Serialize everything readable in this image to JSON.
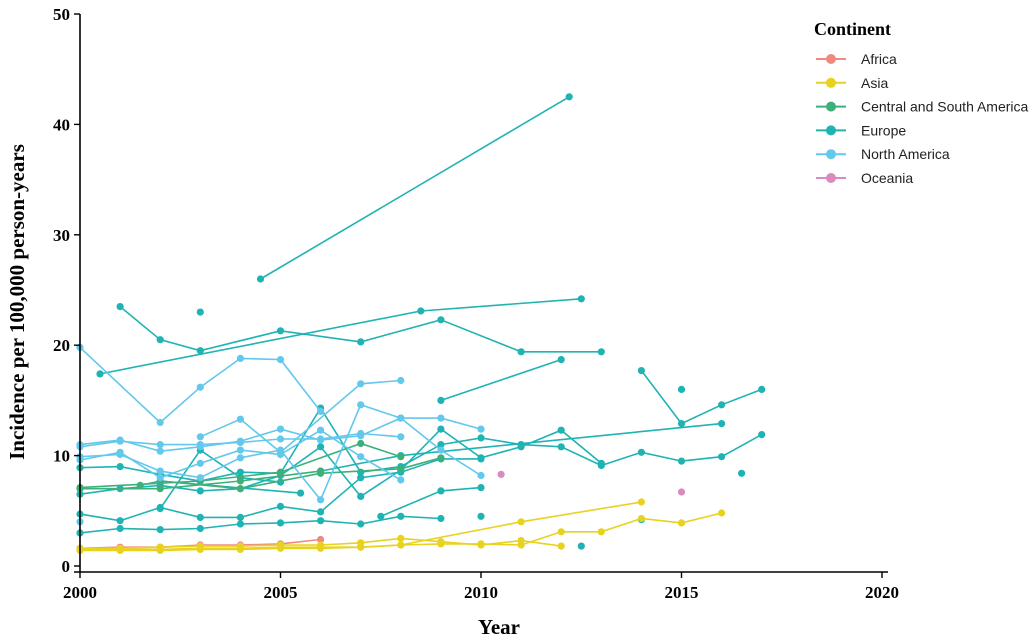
{
  "chart_data": {
    "type": "line",
    "xlabel": "Year",
    "ylabel": "Incidence per 100,000 person-years",
    "xlim": [
      2000,
      2020
    ],
    "ylim": [
      0,
      50
    ],
    "xticks": [
      "2000",
      "2005",
      "2010",
      "2015",
      "2020"
    ],
    "yticks": [
      "0",
      "10",
      "20",
      "30",
      "40",
      "50"
    ],
    "grid": false,
    "legend": {
      "title": "Continent",
      "placement": "top-right",
      "entries": [
        {
          "name": "Africa",
          "color": "#F08A7E"
        },
        {
          "name": "Asia",
          "color": "#E8D21E"
        },
        {
          "name": "Central and South America",
          "color": "#3DB07A"
        },
        {
          "name": "Europe",
          "color": "#1FB3B3"
        },
        {
          "name": "North America",
          "color": "#62C8EC"
        },
        {
          "name": "Oceania",
          "color": "#D98BC0"
        }
      ]
    },
    "series": [
      {
        "continent": "Europe",
        "points": [
          [
            2004.5,
            26.0
          ],
          [
            2012.2,
            42.5
          ]
        ]
      },
      {
        "continent": "Europe",
        "points": [
          [
            2003,
            23.0
          ]
        ]
      },
      {
        "continent": "Europe",
        "points": [
          [
            2001,
            23.5
          ],
          [
            2002,
            20.5
          ],
          [
            2003,
            19.5
          ],
          [
            2005,
            21.3
          ],
          [
            2007,
            20.3
          ],
          [
            2009,
            22.3
          ],
          [
            2011,
            19.4
          ],
          [
            2013,
            19.4
          ]
        ]
      },
      {
        "continent": "Europe",
        "points": [
          [
            2000.5,
            17.4
          ],
          [
            2008.5,
            23.1
          ],
          [
            2012.5,
            24.2
          ]
        ]
      },
      {
        "continent": "Europe",
        "points": [
          [
            2009,
            15.0
          ],
          [
            2012,
            18.7
          ]
        ]
      },
      {
        "continent": "Europe",
        "points": [
          [
            2014,
            17.7
          ],
          [
            2015,
            12.9
          ],
          [
            2016,
            14.6
          ],
          [
            2017,
            16.0
          ]
        ]
      },
      {
        "continent": "Europe",
        "points": [
          [
            2015,
            16.0
          ]
        ]
      },
      {
        "continent": "Europe",
        "points": [
          [
            2000,
            8.9
          ],
          [
            2001,
            9.0
          ],
          [
            2002,
            8.3
          ],
          [
            2003,
            7.7
          ],
          [
            2004,
            8.5
          ],
          [
            2005,
            8.4
          ],
          [
            2006,
            14.3
          ],
          [
            2007,
            8.5
          ],
          [
            2008,
            9.0
          ],
          [
            2009,
            11.0
          ],
          [
            2010,
            11.6
          ],
          [
            2011,
            11.0
          ],
          [
            2012,
            10.8
          ],
          [
            2013,
            9.1
          ],
          [
            2014,
            10.3
          ],
          [
            2015,
            9.5
          ],
          [
            2016,
            9.9
          ],
          [
            2017,
            11.9
          ]
        ]
      },
      {
        "continent": "Europe",
        "points": [
          [
            2000,
            6.5
          ],
          [
            2001,
            7.0
          ],
          [
            2002,
            7.3
          ],
          [
            2003,
            6.8
          ],
          [
            2004,
            7.0
          ],
          [
            2005,
            8.2
          ],
          [
            2006,
            10.8
          ],
          [
            2007,
            6.3
          ],
          [
            2008,
            8.7
          ],
          [
            2009,
            12.4
          ],
          [
            2010,
            9.8
          ],
          [
            2011,
            10.8
          ],
          [
            2012,
            12.3
          ],
          [
            2013,
            9.3
          ]
        ]
      },
      {
        "continent": "Europe",
        "points": [
          [
            2000,
            4.7
          ],
          [
            2001,
            4.1
          ],
          [
            2002,
            5.3
          ],
          [
            2003,
            4.4
          ],
          [
            2004,
            4.4
          ],
          [
            2005,
            5.4
          ],
          [
            2006,
            4.9
          ],
          [
            2007,
            8.0
          ],
          [
            2008,
            8.5
          ],
          [
            2009,
            9.7
          ],
          [
            2010,
            9.7
          ]
        ]
      },
      {
        "continent": "Europe",
        "points": [
          [
            2000,
            3.0
          ],
          [
            2001,
            3.4
          ],
          [
            2002,
            3.3
          ],
          [
            2003,
            3.4
          ],
          [
            2004,
            3.8
          ],
          [
            2005,
            3.9
          ],
          [
            2006,
            4.1
          ],
          [
            2007,
            3.8
          ],
          [
            2008,
            4.5
          ],
          [
            2009,
            4.3
          ]
        ]
      },
      {
        "continent": "Europe",
        "points": [
          [
            2007.5,
            4.5
          ],
          [
            2009,
            6.8
          ],
          [
            2010,
            7.1
          ]
        ]
      },
      {
        "continent": "Europe",
        "points": [
          [
            2002,
            5.2
          ],
          [
            2003,
            10.5
          ],
          [
            2004,
            8.0
          ],
          [
            2005,
            7.6
          ]
        ]
      },
      {
        "continent": "Europe",
        "points": [
          [
            2002,
            7.7
          ],
          [
            2005.5,
            6.6
          ]
        ]
      },
      {
        "continent": "Europe",
        "points": [
          [
            2006,
            8.6
          ],
          [
            2008,
            10.0
          ],
          [
            2016,
            12.9
          ]
        ]
      },
      {
        "continent": "Europe",
        "points": [
          [
            2016.5,
            8.4
          ]
        ]
      },
      {
        "continent": "Europe",
        "points": [
          [
            2010,
            4.5
          ]
        ]
      },
      {
        "continent": "Europe",
        "points": [
          [
            2012.5,
            1.8
          ]
        ]
      },
      {
        "continent": "Europe",
        "points": [
          [
            2014,
            4.2
          ]
        ]
      },
      {
        "continent": "Central and South America",
        "points": [
          [
            2000,
            7.0
          ],
          [
            2002,
            7.0
          ],
          [
            2004,
            7.7
          ],
          [
            2006,
            8.6
          ]
        ]
      },
      {
        "continent": "Central and South America",
        "points": [
          [
            2001.5,
            7.3
          ],
          [
            2002,
            7.7
          ],
          [
            2004,
            7.0
          ],
          [
            2006,
            8.4
          ],
          [
            2008,
            8.8
          ],
          [
            2009,
            9.8
          ]
        ]
      },
      {
        "continent": "Central and South America",
        "points": [
          [
            2000,
            7.1
          ],
          [
            2003,
            7.7
          ],
          [
            2005,
            8.5
          ],
          [
            2007,
            11.1
          ],
          [
            2008,
            9.9
          ]
        ]
      },
      {
        "continent": "North America",
        "points": [
          [
            2000,
            19.8
          ],
          [
            2002,
            13.0
          ],
          [
            2003,
            16.2
          ],
          [
            2004,
            18.8
          ],
          [
            2005,
            18.7
          ],
          [
            2006,
            14.0
          ]
        ]
      },
      {
        "continent": "North America",
        "points": [
          [
            2003,
            11.7
          ],
          [
            2004,
            13.3
          ],
          [
            2005,
            10.3
          ],
          [
            2007,
            16.5
          ],
          [
            2008,
            16.8
          ]
        ]
      },
      {
        "continent": "North America",
        "points": [
          [
            2000,
            11.0
          ],
          [
            2001,
            11.4
          ],
          [
            2002,
            10.4
          ],
          [
            2003,
            10.8
          ],
          [
            2004,
            11.3
          ],
          [
            2005,
            12.4
          ],
          [
            2006,
            11.4
          ],
          [
            2007,
            11.8
          ],
          [
            2008,
            13.4
          ],
          [
            2009,
            13.4
          ],
          [
            2010,
            12.4
          ]
        ]
      },
      {
        "continent": "North America",
        "points": [
          [
            2000,
            10.8
          ],
          [
            2001,
            11.3
          ],
          [
            2002,
            11.0
          ],
          [
            2003,
            11.0
          ],
          [
            2004,
            11.2
          ],
          [
            2005,
            11.5
          ],
          [
            2006,
            11.5
          ],
          [
            2007,
            12.0
          ],
          [
            2008,
            11.7
          ]
        ]
      },
      {
        "continent": "North America",
        "points": [
          [
            2000,
            9.9
          ],
          [
            2001,
            10.1
          ],
          [
            2002,
            8.6
          ],
          [
            2003,
            8.0
          ],
          [
            2004,
            9.8
          ],
          [
            2005,
            10.5
          ],
          [
            2006,
            6.0
          ],
          [
            2007,
            14.6
          ],
          [
            2008,
            13.4
          ],
          [
            2009,
            10.5
          ],
          [
            2010,
            8.2
          ]
        ]
      },
      {
        "continent": "North America",
        "points": [
          [
            2000,
            9.6
          ],
          [
            2001,
            10.3
          ],
          [
            2002,
            8.0
          ],
          [
            2003,
            9.3
          ],
          [
            2004,
            10.5
          ],
          [
            2005,
            10.1
          ],
          [
            2006,
            12.3
          ],
          [
            2007,
            9.9
          ],
          [
            2008,
            7.8
          ]
        ]
      },
      {
        "continent": "North America",
        "points": [
          [
            2000,
            4.0
          ]
        ]
      },
      {
        "continent": "Africa",
        "points": [
          [
            2000,
            1.6
          ],
          [
            2001,
            1.7
          ],
          [
            2002,
            1.7
          ],
          [
            2003,
            1.9
          ],
          [
            2004,
            1.9
          ],
          [
            2005,
            2.0
          ],
          [
            2006,
            2.4
          ]
        ]
      },
      {
        "continent": "Asia",
        "points": [
          [
            2000,
            1.6
          ],
          [
            2001,
            1.6
          ],
          [
            2002,
            1.7
          ],
          [
            2003,
            1.8
          ],
          [
            2004,
            1.8
          ],
          [
            2005,
            1.9
          ],
          [
            2006,
            1.9
          ],
          [
            2007,
            2.1
          ],
          [
            2008,
            2.5
          ],
          [
            2009,
            2.2
          ],
          [
            2010,
            1.9
          ],
          [
            2011,
            2.3
          ],
          [
            2012,
            1.8
          ]
        ]
      },
      {
        "continent": "Asia",
        "points": [
          [
            2000,
            1.5
          ],
          [
            2001,
            1.5
          ],
          [
            2002,
            1.5
          ],
          [
            2003,
            1.6
          ],
          [
            2004,
            1.6
          ],
          [
            2005,
            1.7
          ],
          [
            2006,
            1.7
          ],
          [
            2007,
            1.7
          ],
          [
            2008,
            1.9
          ],
          [
            2009,
            2.0
          ],
          [
            2010,
            2.0
          ],
          [
            2011,
            1.9
          ],
          [
            2012,
            3.1
          ],
          [
            2013,
            3.1
          ],
          [
            2014,
            4.3
          ],
          [
            2015,
            3.9
          ],
          [
            2016,
            4.8
          ]
        ]
      },
      {
        "continent": "Asia",
        "points": [
          [
            2000,
            1.4
          ],
          [
            2001,
            1.4
          ],
          [
            2002,
            1.4
          ],
          [
            2003,
            1.5
          ],
          [
            2004,
            1.5
          ],
          [
            2005,
            1.6
          ],
          [
            2006,
            1.6
          ],
          [
            2007,
            1.7
          ],
          [
            2008,
            1.9
          ],
          [
            2011,
            4.0
          ],
          [
            2014,
            5.8
          ]
        ]
      },
      {
        "continent": "Oceania",
        "points": [
          [
            2010.5,
            8.3
          ]
        ]
      },
      {
        "continent": "Oceania",
        "points": [
          [
            2015,
            6.7
          ]
        ]
      }
    ]
  }
}
